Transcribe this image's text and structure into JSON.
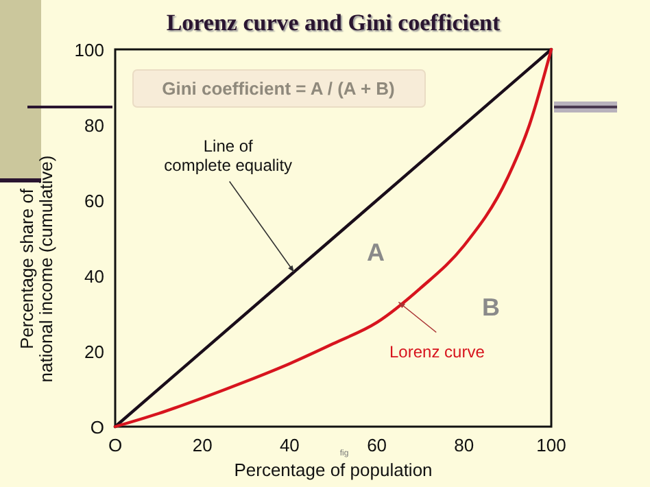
{
  "chart_data": {
    "type": "line",
    "title": "Lorenz curve and Gini coefficient",
    "xlabel": "Percentage of population",
    "ylabel": "Percentage share of national income (cumulative)",
    "xlim": [
      0,
      100
    ],
    "ylim": [
      0,
      100
    ],
    "xticks": [
      {
        "value": 0,
        "label": "O"
      },
      20,
      40,
      60,
      80,
      100
    ],
    "yticks": [
      {
        "value": 0,
        "label": "O"
      },
      20,
      40,
      60,
      80,
      100
    ],
    "grid": false,
    "marker": "none",
    "series": [
      {
        "x": [
          0,
          100
        ],
        "values": [
          0,
          100
        ],
        "color": "#1a0d1a"
      },
      {
        "x": [
          0,
          10,
          20,
          30,
          40,
          50,
          60,
          70,
          80,
          90,
          95,
          100
        ],
        "values": [
          0,
          3.5,
          7.6,
          12,
          16.7,
          22,
          27.6,
          36.7,
          48,
          66,
          80,
          100
        ],
        "color": "#d7141e"
      }
    ],
    "annotations": [
      "Gini coefficient = A / (A + B)",
      {
        "text": "Line of complete equality",
        "x": 41,
        "y": 41
      },
      "A",
      "B",
      {
        "text": "Lorenz curve",
        "x": 65,
        "y": 33
      },
      "fig"
    ]
  }
}
